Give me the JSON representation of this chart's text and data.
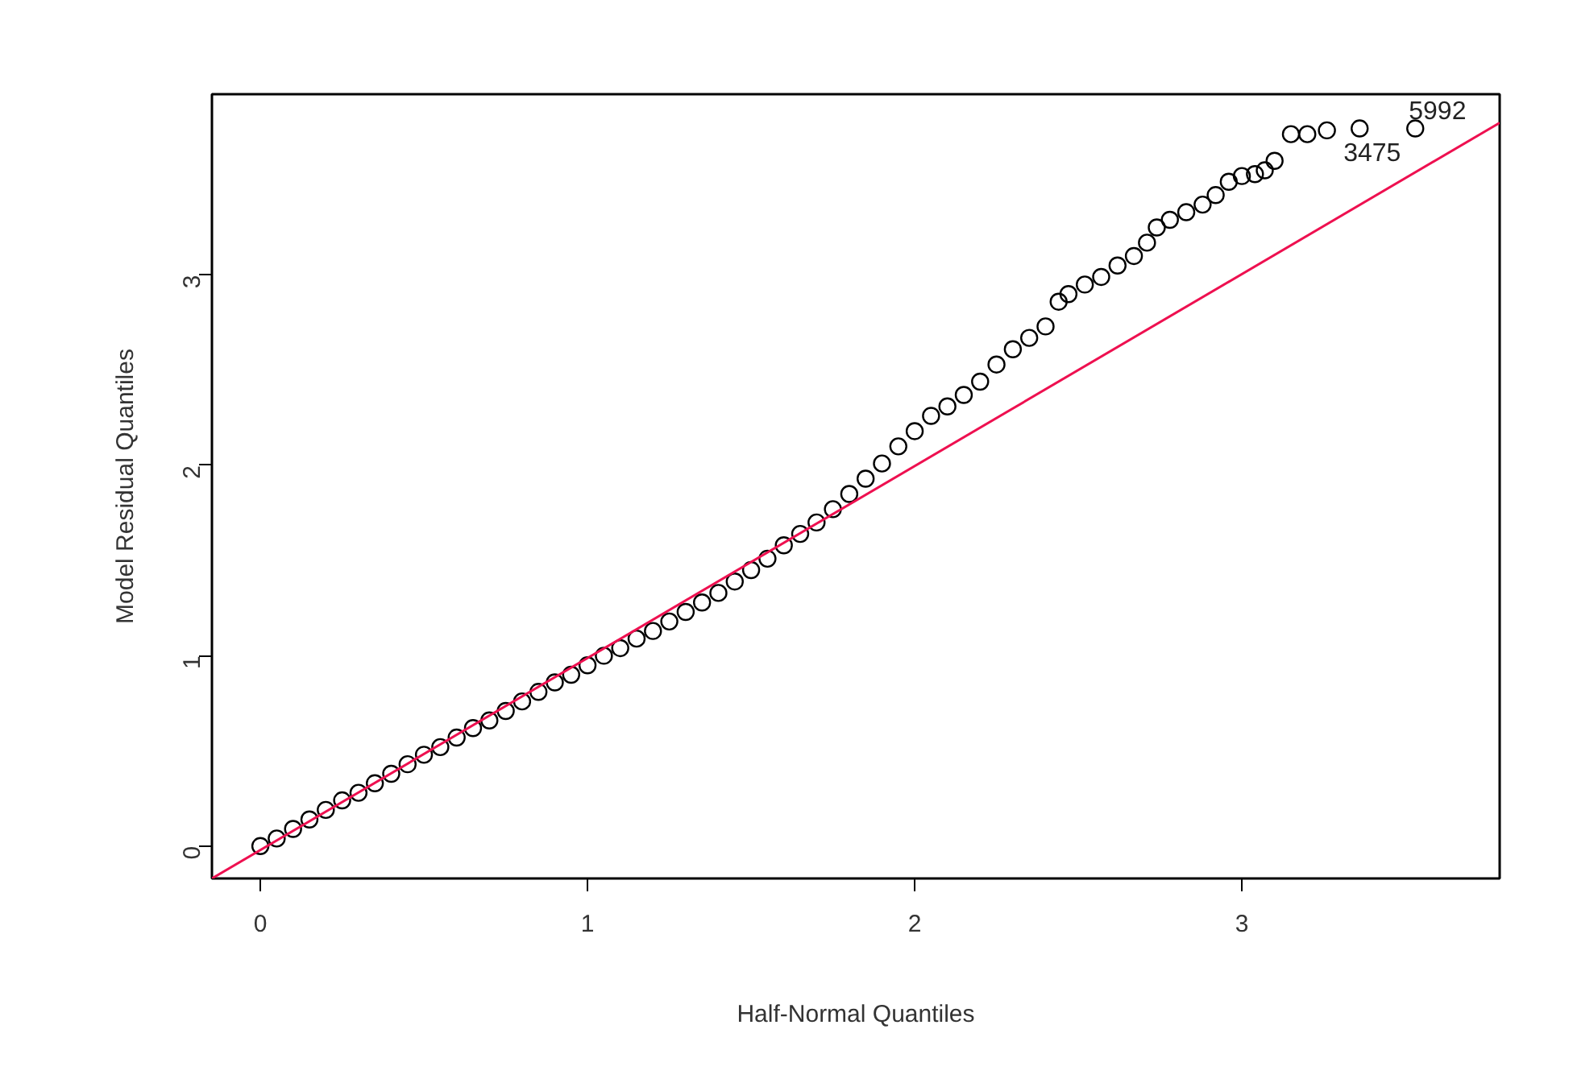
{
  "chart_data": {
    "type": "scatter",
    "xlabel": "Half-Normal Quantiles",
    "ylabel": "Model Residual Quantiles",
    "xlim": [
      -0.148,
      3.788
    ],
    "ylim": [
      -0.17,
      3.95
    ],
    "xticks": [
      0,
      1,
      2,
      3
    ],
    "yticks": [
      0,
      1,
      2,
      3
    ],
    "grid": false,
    "series": [
      {
        "marker": "circle",
        "color": "#000000",
        "x": [
          0,
          0.05,
          0.1,
          0.15,
          0.2,
          0.25,
          0.3,
          0.35,
          0.4,
          0.45,
          0.5,
          0.55,
          0.6,
          0.65,
          0.7,
          0.75,
          0.8,
          0.85,
          0.9,
          0.95,
          1.0,
          1.05,
          1.1,
          1.15,
          1.2,
          1.25,
          1.3,
          1.35,
          1.4,
          1.45,
          1.5,
          1.55,
          1.6,
          1.65,
          1.7,
          1.75,
          1.8,
          1.85,
          1.9,
          1.95,
          2.0,
          2.05,
          2.1,
          2.15,
          2.2,
          2.25,
          2.3,
          2.35,
          2.4,
          2.44,
          2.47,
          2.52,
          2.57,
          2.62,
          2.67,
          2.71,
          2.74,
          2.78,
          2.83,
          2.88,
          2.92,
          2.96,
          3.0,
          3.04,
          3.07,
          3.1,
          3.15,
          3.2,
          3.26,
          3.36,
          3.53
        ],
        "values": [
          0.0,
          0.04,
          0.09,
          0.14,
          0.19,
          0.24,
          0.28,
          0.33,
          0.38,
          0.43,
          0.48,
          0.52,
          0.57,
          0.62,
          0.66,
          0.71,
          0.76,
          0.81,
          0.86,
          0.9,
          0.95,
          1.0,
          1.04,
          1.09,
          1.13,
          1.18,
          1.23,
          1.28,
          1.33,
          1.39,
          1.45,
          1.51,
          1.58,
          1.64,
          1.7,
          1.77,
          1.85,
          1.93,
          2.01,
          2.1,
          2.18,
          2.26,
          2.31,
          2.37,
          2.44,
          2.53,
          2.61,
          2.67,
          2.73,
          2.86,
          2.9,
          2.95,
          2.99,
          3.05,
          3.1,
          3.17,
          3.25,
          3.29,
          3.33,
          3.37,
          3.42,
          3.49,
          3.52,
          3.53,
          3.55,
          3.6,
          3.74,
          3.74,
          3.76,
          3.77,
          3.77
        ]
      },
      {
        "type": "line",
        "color": "#ee1050",
        "line_style": "solid",
        "x": [
          -0.148,
          3.788
        ],
        "values": [
          -0.17,
          3.8
        ]
      }
    ],
    "annotations": [
      {
        "text": "3475",
        "x": 3.36,
        "y": 3.77
      },
      {
        "text": "5992",
        "x": 3.53,
        "y": 3.77
      }
    ]
  }
}
